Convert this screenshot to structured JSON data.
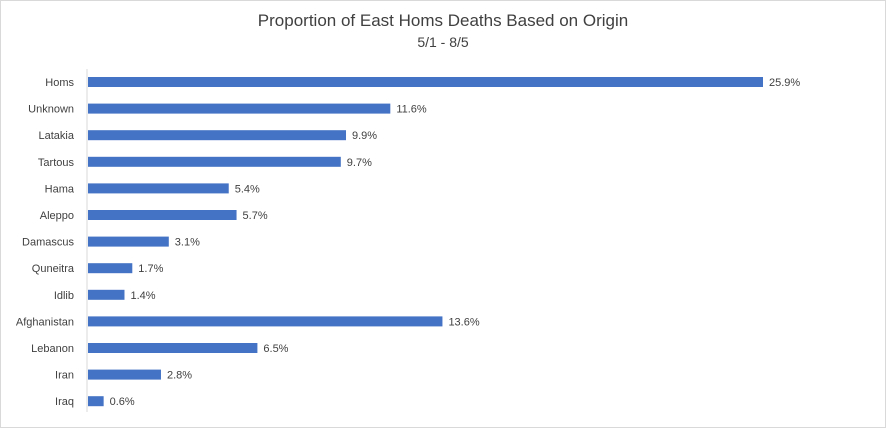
{
  "chart_data": {
    "type": "bar",
    "orientation": "horizontal",
    "title": "Proportion of East Homs Deaths Based on Origin",
    "subtitle": "5/1 - 8/5",
    "categories": [
      "Homs",
      "Unknown",
      "Latakia",
      "Tartous",
      "Hama",
      "Aleppo",
      "Damascus",
      "Quneitra",
      "Idlib",
      "Afghanistan",
      "Lebanon",
      "Iran",
      "Iraq"
    ],
    "values": [
      25.9,
      11.6,
      9.9,
      9.7,
      5.4,
      5.7,
      3.1,
      1.7,
      1.4,
      13.6,
      6.5,
      2.8,
      0.6
    ],
    "value_labels": [
      "25.9%",
      "11.6%",
      "9.9%",
      "9.7%",
      "5.4%",
      "5.7%",
      "3.1%",
      "1.7%",
      "1.4%",
      "13.6%",
      "6.5%",
      "2.8%",
      "0.6%"
    ],
    "xlabel": "",
    "ylabel": "",
    "xlim": [
      0,
      25.9
    ],
    "grid": false,
    "legend": "none",
    "bar_color": "#4472c4"
  }
}
